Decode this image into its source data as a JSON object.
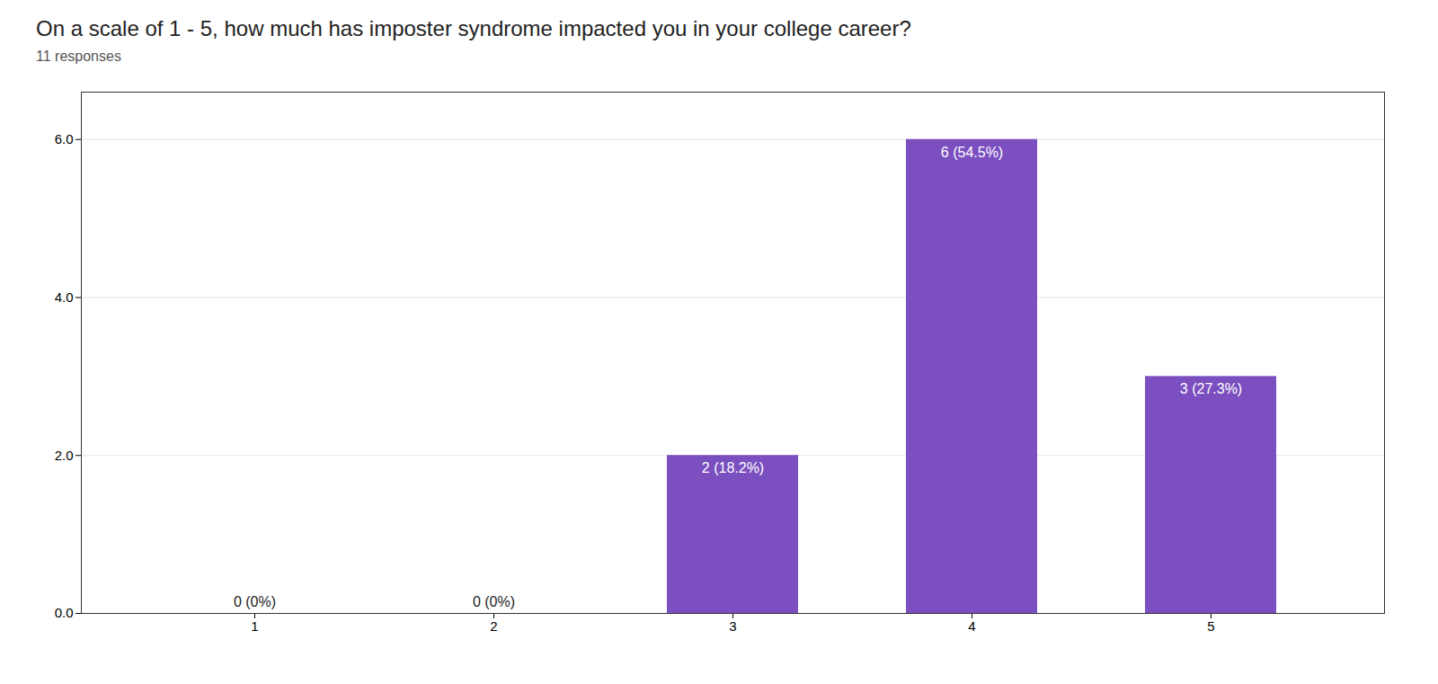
{
  "chart_data": {
    "type": "bar",
    "title": "On a scale of 1 - 5, how much has imposter syndrome impacted you in your college career?",
    "subtitle": "11 responses",
    "categories": [
      1,
      2,
      3,
      4,
      5
    ],
    "values": [
      0,
      0,
      2,
      6,
      3
    ],
    "value_labels": [
      "0 (0%)",
      "0 (0%)",
      "2 (18.2%)",
      "6 (54.5%)",
      "3 (27.3%)"
    ],
    "color": "#7B4FBF",
    "ylim": [
      0,
      6.6
    ],
    "yticks": [
      0,
      2,
      4,
      6
    ],
    "grid": true,
    "data_labels": true
  }
}
